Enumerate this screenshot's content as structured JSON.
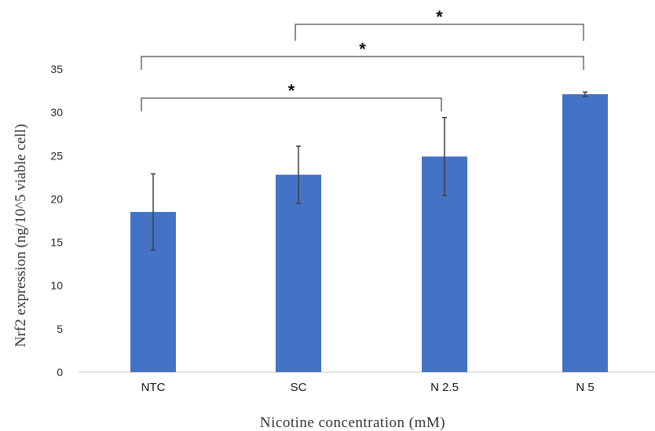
{
  "chart_data": {
    "type": "bar",
    "categories": [
      "NTC",
      "SC",
      "N 2.5",
      "N 5"
    ],
    "values": [
      18.5,
      22.8,
      24.9,
      32.1
    ],
    "errors": [
      4.4,
      3.3,
      4.5,
      0.25
    ],
    "xlabel": "Nicotine concentration (mM)",
    "ylabel": "Nrf2 expression (ng/10^5 viable cell)",
    "ylim": [
      0,
      35
    ],
    "yticks": [
      0,
      5,
      10,
      15,
      20,
      25,
      30,
      35
    ],
    "grid": false,
    "bar_color": "#4472C4",
    "error_color": "#404040",
    "significance": [
      {
        "from": "NTC",
        "to": "N 2.5",
        "label": "*"
      },
      {
        "from": "NTC",
        "to": "N 5",
        "label": "*"
      },
      {
        "from": "SC",
        "to": "N 5",
        "label": "*"
      }
    ]
  }
}
